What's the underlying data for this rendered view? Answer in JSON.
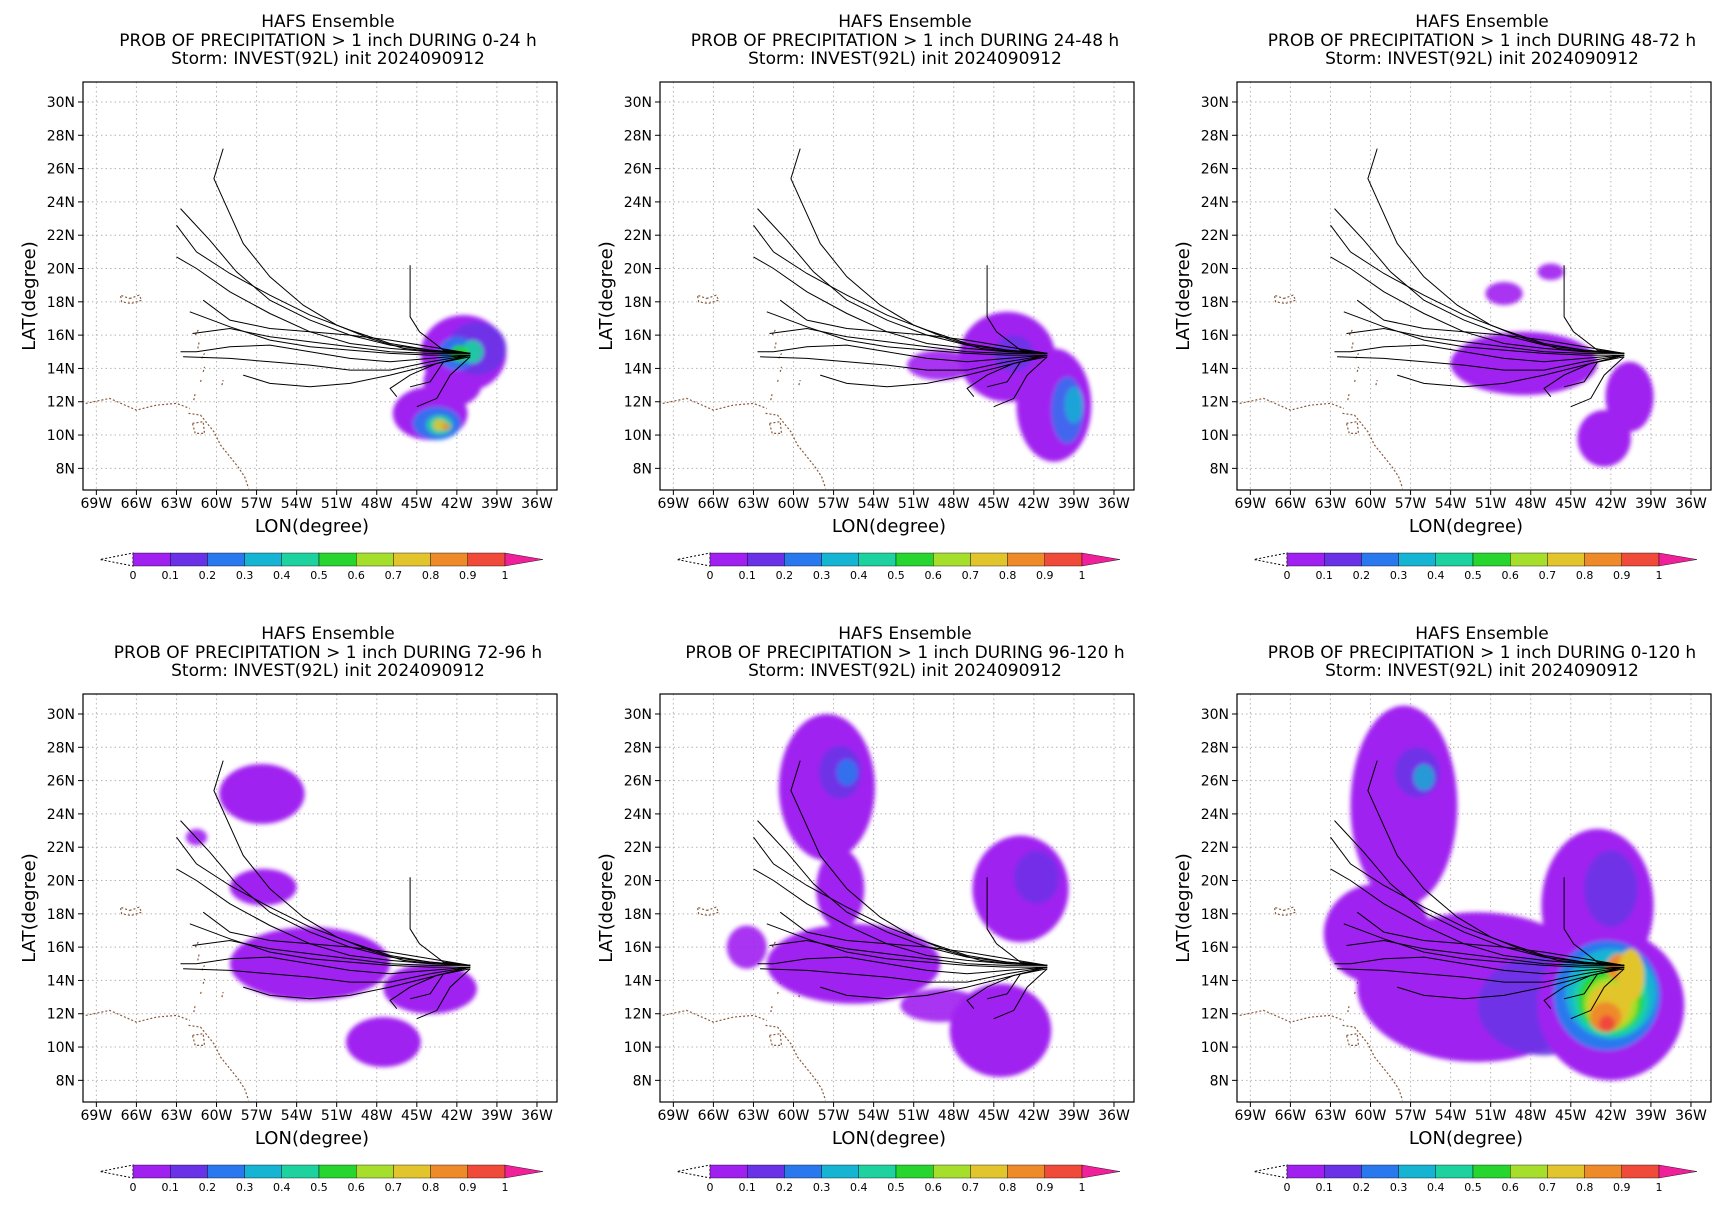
{
  "colorbar": {
    "labels": [
      "0",
      "0.1",
      "0.2",
      "0.3",
      "0.4",
      "0.5",
      "0.6",
      "0.7",
      "0.8",
      "0.9",
      "1"
    ],
    "colors": [
      "#a020f0",
      "#6a32e6",
      "#2a78ee",
      "#15b4d2",
      "#1ed2a0",
      "#26d62e",
      "#a6de2c",
      "#e2c52c",
      "#ee8a2a",
      "#f04a3a",
      "#f0209a"
    ]
  },
  "axes": {
    "xlabel": "LON(degree)",
    "ylabel": "LAT(degree)",
    "xticks": [
      "69W",
      "66W",
      "63W",
      "60W",
      "57W",
      "54W",
      "51W",
      "48W",
      "45W",
      "42W",
      "39W",
      "36W"
    ],
    "yticks": [
      "8N",
      "10N",
      "12N",
      "14N",
      "16N",
      "18N",
      "20N",
      "22N",
      "24N",
      "26N",
      "28N",
      "30N"
    ]
  },
  "panels": [
    {
      "title1": "HAFS Ensemble",
      "title2": "PROB OF PRECIPITATION > 1 inch DURING  0-24 h",
      "title3": "Storm: INVEST(92L) init 2024090912"
    },
    {
      "title1": "HAFS Ensemble",
      "title2": "PROB OF PRECIPITATION > 1 inch DURING 24-48 h",
      "title3": "Storm: INVEST(92L) init 2024090912"
    },
    {
      "title1": "HAFS Ensemble",
      "title2": "PROB OF PRECIPITATION > 1 inch DURING 48-72 h",
      "title3": "Storm: INVEST(92L) init 2024090912"
    },
    {
      "title1": "HAFS Ensemble",
      "title2": "PROB OF PRECIPITATION > 1 inch DURING 72-96 h",
      "title3": "Storm: INVEST(92L) init 2024090912"
    },
    {
      "title1": "HAFS Ensemble",
      "title2": "PROB OF PRECIPITATION > 1 inch DURING 96-120 h",
      "title3": "Storm: INVEST(92L) init 2024090912"
    },
    {
      "title1": "HAFS Ensemble",
      "title2": "PROB OF PRECIPITATION > 1 inch DURING 0-120 h",
      "title3": "Storm: INVEST(92L) init 2024090912"
    }
  ]
}
